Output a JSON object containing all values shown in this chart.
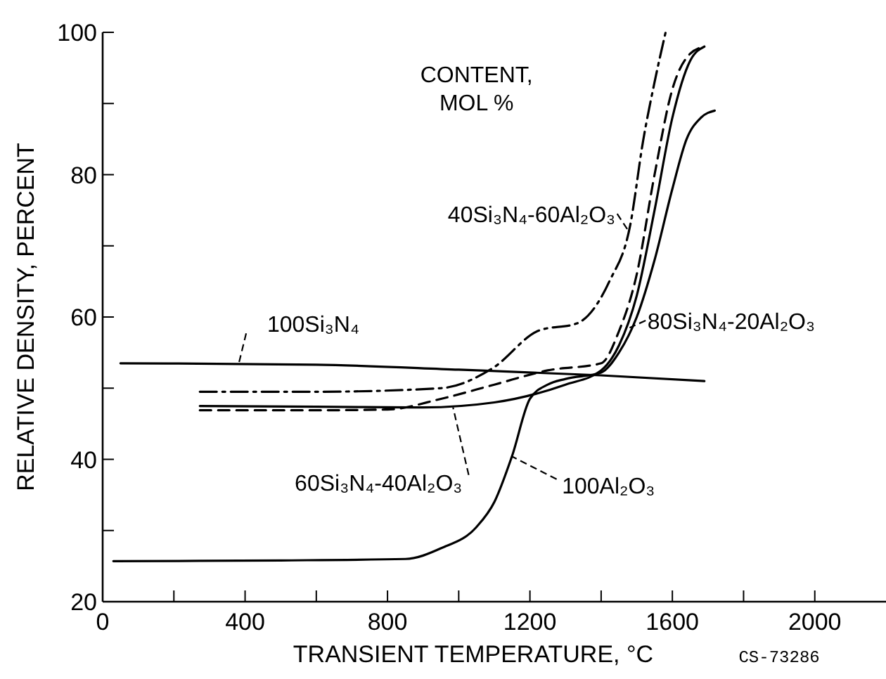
{
  "chart_data": {
    "type": "line",
    "xlabel": "TRANSIENT TEMPERATURE, °C",
    "ylabel": "RELATIVE DENSITY, PERCENT",
    "legend_title": "CONTENT,\nMOL %",
    "annotations": [
      "CS-73286"
    ],
    "xlim": [
      0,
      2200
    ],
    "ylim": [
      20,
      100
    ],
    "xticks": [
      0,
      {
        "value": 200,
        "label": null
      },
      400,
      {
        "value": 600,
        "label": null
      },
      800,
      {
        "value": 1000,
        "label": null
      },
      1200,
      {
        "value": 1400,
        "label": null
      },
      1600,
      {
        "value": 1800,
        "label": null
      },
      2000
    ],
    "yticks": [
      20,
      {
        "value": 30,
        "label": null
      },
      40,
      {
        "value": 50,
        "label": null
      },
      60,
      {
        "value": 70,
        "label": null
      },
      80,
      {
        "value": 90,
        "label": null
      },
      100
    ],
    "grid": false,
    "marker": "none",
    "series": [
      {
        "name": "100Si₃N₄",
        "color": "#000000",
        "line_style": "solid",
        "x": [
          50,
          600,
          1000,
          1400,
          1690
        ],
        "values": [
          53.5,
          53.3,
          52.6,
          51.8,
          51
        ]
      },
      {
        "name": "100Al₂O₃",
        "color": "#000000",
        "line_style": "solid",
        "x": [
          30,
          500,
          850,
          950,
          1050,
          1100,
          1150,
          1200,
          1250,
          1300,
          1400,
          1450,
          1500,
          1550,
          1600,
          1640,
          1680,
          1719
        ],
        "values": [
          25.7,
          25.8,
          26,
          27.5,
          30.5,
          34,
          40.5,
          48.5,
          50.5,
          51.3,
          52.2,
          55,
          60,
          68,
          78,
          85,
          88,
          89
        ]
      },
      {
        "name": "40Si₃N₄-60Al₂O₃",
        "color": "#000000",
        "line_style": "dashdot",
        "x": [
          273,
          600,
          950,
          1095,
          1225,
          1332,
          1423,
          1482,
          1518,
          1550,
          1581
        ],
        "values": [
          49.5,
          49.5,
          50,
          52.8,
          58.1,
          59.1,
          65,
          73,
          84.8,
          93,
          100
        ]
      },
      {
        "name": "60Si₃N₄-40Al₂O₃",
        "color": "#000000",
        "line_style": "solid",
        "x": [
          273,
          600,
          900,
          1100,
          1300,
          1400,
          1450,
          1500,
          1550,
          1600,
          1650,
          1690
        ],
        "values": [
          47.5,
          47.4,
          47.3,
          48,
          50.5,
          52.5,
          56,
          63,
          75,
          88,
          96,
          98
        ]
      },
      {
        "name": "80Si₃N₄-20Al₂O₃",
        "color": "#000000",
        "line_style": "dashed",
        "x": [
          273,
          600,
          800,
          950,
          1100,
          1250,
          1400,
          1450,
          1500,
          1550,
          1600,
          1650,
          1690
        ],
        "values": [
          46.9,
          46.9,
          47,
          48.5,
          50.5,
          52.5,
          53.5,
          58,
          66,
          80,
          92,
          97,
          98
        ]
      }
    ]
  }
}
